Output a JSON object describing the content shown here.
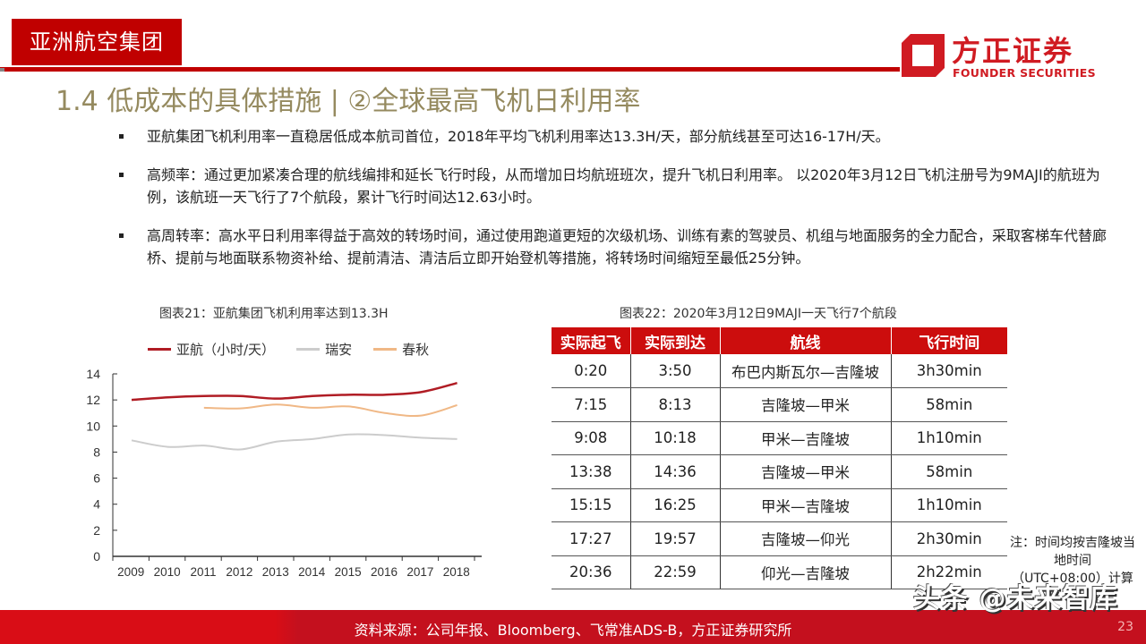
{
  "header": {
    "section_tab": "亚洲航空集团",
    "title": "1.4 低成本的具体措施 | ②全球最高飞机日利用率",
    "logo_cn": "方正证券",
    "logo_en": "FOUNDER SECURITIES"
  },
  "bullets": [
    "亚航集团飞机利用率一直稳居低成本航司首位，2018年平均飞机利用率达13.3H/天，部分航线甚至可达16-17H/天。",
    "高频率：通过更加紧凑合理的航线编排和延长飞行时段，从而增加日均航班班次，提升飞机日利用率。 以2020年3月12日飞机注册号为9MAJI的航班为例，该航班一天飞行了7个航段，累计飞行时间达12.63小时。",
    "高周转率：高水平日利用率得益于高效的转场时间，通过使用跑道更短的次级机场、训练有素的驾驶员、机组与地面服务的全力配合，采取客梯车代替廊桥、提前与地面联系物资补给、提前清洁、清洁后立即开始登机等措施，将转场时间缩短至最低25分钟。"
  ],
  "chart": {
    "title": "图表21：亚航集团飞机利用率达到13.3H",
    "legend": [
      "亚航（小时/天）",
      "瑞安",
      "春秋"
    ],
    "colors": [
      "#b01c24",
      "#cccccc",
      "#f0b886"
    ]
  },
  "chart_data": {
    "type": "line",
    "title": "图表21：亚航集团飞机利用率达到13.3H",
    "x": [
      "2009",
      "2010",
      "2011",
      "2012",
      "2013",
      "2014",
      "2015",
      "2016",
      "2017",
      "2018"
    ],
    "series": [
      {
        "name": "亚航（小时/天）",
        "color": "#b01c24",
        "values": [
          12.0,
          12.2,
          12.3,
          12.3,
          12.1,
          12.3,
          12.4,
          12.4,
          12.6,
          13.3
        ]
      },
      {
        "name": "瑞安",
        "color": "#cccccc",
        "values": [
          8.9,
          8.4,
          8.5,
          8.2,
          8.8,
          9.0,
          9.35,
          9.3,
          9.1,
          9.0
        ]
      },
      {
        "name": "春秋",
        "color": "#f0b886",
        "values": [
          null,
          null,
          11.4,
          11.35,
          11.65,
          11.4,
          11.5,
          11.0,
          10.8,
          11.6
        ]
      }
    ],
    "xlabel": "",
    "ylabel": "",
    "ylim": [
      0,
      14
    ],
    "yticks": [
      0,
      2,
      4,
      6,
      8,
      10,
      12,
      14
    ],
    "grid": false,
    "legend_position": "top"
  },
  "table": {
    "title": "图表22：2020年3月12日9MAJI一天飞行7个航段",
    "headers": [
      "实际起飞",
      "实际到达",
      "航线",
      "飞行时间"
    ],
    "rows": [
      [
        "0:20",
        "3:50",
        "布巴内斯瓦尔—吉隆坡",
        "3h30min"
      ],
      [
        "7:15",
        "8:13",
        "吉隆坡—甲米",
        "58min"
      ],
      [
        "9:08",
        "10:18",
        "甲米—吉隆坡",
        "1h10min"
      ],
      [
        "13:38",
        "14:36",
        "吉隆坡—甲米",
        "58min"
      ],
      [
        "15:15",
        "16:25",
        "甲米—吉隆坡",
        "1h10min"
      ],
      [
        "17:27",
        "19:57",
        "吉隆坡—仰光",
        "2h30min"
      ],
      [
        "20:36",
        "22:59",
        "仰光—吉隆坡",
        "2h22min"
      ]
    ],
    "note": "注：时间均按吉隆坡当地时间（UTC+08:00）计算"
  },
  "footer": {
    "source": "资料来源：公司年报、Bloomberg、飞常准ADS-B，方正证券研究所",
    "page": "23",
    "watermark": "头条 @未来智库"
  }
}
